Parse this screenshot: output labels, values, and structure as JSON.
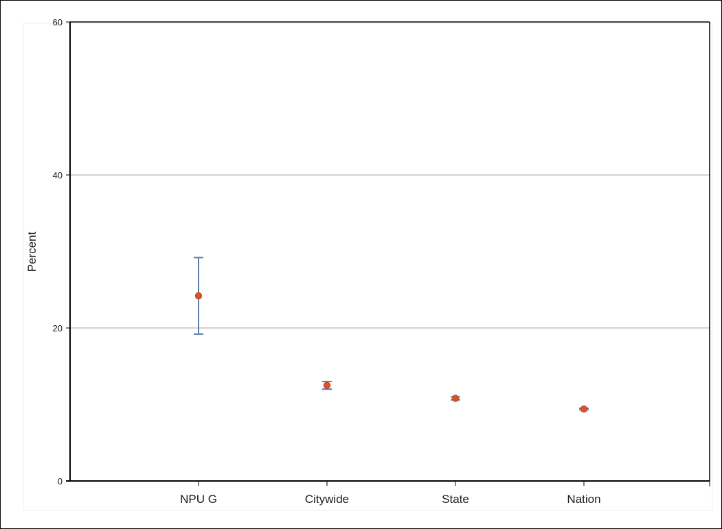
{
  "chart_data": {
    "type": "scatter",
    "title": "",
    "xlabel": "",
    "ylabel": "Percent",
    "ylim": [
      0,
      60
    ],
    "y_ticks": [
      0,
      20,
      40,
      60
    ],
    "grid": "horizontal",
    "categories": [
      "NPU G",
      "Citywide",
      "State",
      "Nation"
    ],
    "series": [
      {
        "values": [
          24.2,
          12.5,
          10.8,
          9.4
        ],
        "lower": [
          19.2,
          12.0,
          10.6,
          9.3
        ],
        "upper": [
          29.2,
          13.0,
          11.0,
          9.5
        ]
      }
    ]
  },
  "colors": {
    "point": "#d9532c",
    "error_bar": "#5b7ea8",
    "grid": "#a6a6a6",
    "axis": "#000000"
  }
}
